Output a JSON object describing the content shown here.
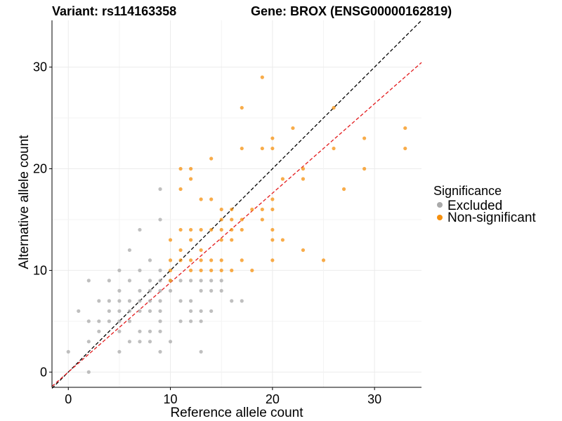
{
  "titles": {
    "variant": "Variant: rs114163358",
    "gene": "Gene: BROX (ENSG00000162819)"
  },
  "legend": {
    "title": "Significance",
    "items": [
      {
        "label": "Excluded",
        "color": "#aaaaaa"
      },
      {
        "label": "Non-significant",
        "color": "#f6900e"
      }
    ]
  },
  "chart_data": {
    "type": "scatter",
    "title": "Variant: rs114163358     Gene: BROX (ENSG00000162819)",
    "xlabel": "Reference allele count",
    "ylabel": "Alternative allele count",
    "xlim": [
      -1.6,
      34.6
    ],
    "ylim": [
      -1.5,
      34.6
    ],
    "xticks": [
      0,
      10,
      20,
      30
    ],
    "yticks": [
      0,
      10,
      20,
      30
    ],
    "grid": true,
    "legend_position": "right",
    "reference_lines": [
      {
        "style": "dashed",
        "color": "#000000",
        "slope": 1.0,
        "intercept": 0
      },
      {
        "style": "dashed",
        "color": "#e31a1c",
        "slope": 0.88,
        "intercept": 0
      }
    ],
    "series": [
      {
        "name": "Excluded",
        "color": "#aaaaaa",
        "points": [
          [
            0,
            2
          ],
          [
            1,
            6
          ],
          [
            2,
            9
          ],
          [
            2,
            5
          ],
          [
            2,
            3
          ],
          [
            2,
            0
          ],
          [
            3,
            7
          ],
          [
            3,
            5
          ],
          [
            3,
            4
          ],
          [
            4,
            9
          ],
          [
            4,
            7
          ],
          [
            4,
            6
          ],
          [
            4,
            5
          ],
          [
            5,
            10
          ],
          [
            5,
            8
          ],
          [
            5,
            7
          ],
          [
            5,
            6
          ],
          [
            5,
            5
          ],
          [
            5,
            4
          ],
          [
            5,
            2
          ],
          [
            6,
            12
          ],
          [
            6,
            9
          ],
          [
            6,
            7
          ],
          [
            6,
            6
          ],
          [
            6,
            5
          ],
          [
            6,
            3
          ],
          [
            7,
            14
          ],
          [
            7,
            10
          ],
          [
            7,
            8
          ],
          [
            7,
            7
          ],
          [
            7,
            6
          ],
          [
            7,
            4
          ],
          [
            7,
            3
          ],
          [
            8,
            11
          ],
          [
            8,
            9
          ],
          [
            8,
            8
          ],
          [
            8,
            7
          ],
          [
            8,
            6
          ],
          [
            8,
            4
          ],
          [
            8,
            3
          ],
          [
            9,
            18
          ],
          [
            9,
            15
          ],
          [
            9,
            10
          ],
          [
            9,
            9
          ],
          [
            9,
            8
          ],
          [
            9,
            7
          ],
          [
            9,
            6
          ],
          [
            9,
            5
          ],
          [
            9,
            4
          ],
          [
            9,
            2
          ],
          [
            10,
            9
          ],
          [
            10,
            8
          ],
          [
            10,
            3
          ],
          [
            11,
            9
          ],
          [
            11,
            7
          ],
          [
            11,
            5
          ],
          [
            12,
            9
          ],
          [
            12,
            7
          ],
          [
            12,
            6
          ],
          [
            12,
            5
          ],
          [
            13,
            9
          ],
          [
            13,
            8
          ],
          [
            13,
            6
          ],
          [
            13,
            5
          ],
          [
            13,
            2
          ],
          [
            14,
            9
          ],
          [
            14,
            8
          ],
          [
            14,
            6
          ],
          [
            15,
            9
          ],
          [
            15,
            8
          ],
          [
            16,
            7
          ],
          [
            17,
            7
          ]
        ]
      },
      {
        "name": "Non-significant",
        "color": "#f6900e",
        "points": [
          [
            10,
            13
          ],
          [
            10,
            11
          ],
          [
            10,
            10
          ],
          [
            10,
            9
          ],
          [
            11,
            20
          ],
          [
            11,
            18
          ],
          [
            11,
            14
          ],
          [
            11,
            12
          ],
          [
            11,
            11
          ],
          [
            12,
            20
          ],
          [
            12,
            19
          ],
          [
            12,
            14
          ],
          [
            12,
            13
          ],
          [
            12,
            11
          ],
          [
            12,
            10
          ],
          [
            13,
            17
          ],
          [
            13,
            14
          ],
          [
            13,
            12
          ],
          [
            13,
            11
          ],
          [
            13,
            10
          ],
          [
            14,
            21
          ],
          [
            14,
            17
          ],
          [
            14,
            14
          ],
          [
            14,
            11
          ],
          [
            14,
            10
          ],
          [
            15,
            16
          ],
          [
            15,
            15
          ],
          [
            15,
            14
          ],
          [
            15,
            13
          ],
          [
            15,
            11
          ],
          [
            15,
            10
          ],
          [
            16,
            16
          ],
          [
            16,
            15
          ],
          [
            16,
            14
          ],
          [
            16,
            13
          ],
          [
            16,
            10
          ],
          [
            17,
            26
          ],
          [
            17,
            22
          ],
          [
            17,
            15
          ],
          [
            17,
            14
          ],
          [
            17,
            11
          ],
          [
            18,
            16
          ],
          [
            18,
            10
          ],
          [
            19,
            29
          ],
          [
            19,
            22
          ],
          [
            19,
            16
          ],
          [
            19,
            15
          ],
          [
            20,
            23
          ],
          [
            20,
            22
          ],
          [
            20,
            17
          ],
          [
            20,
            16
          ],
          [
            20,
            14
          ],
          [
            20,
            13
          ],
          [
            20,
            11
          ],
          [
            21,
            19
          ],
          [
            21,
            13
          ],
          [
            22,
            24
          ],
          [
            23,
            20
          ],
          [
            23,
            19
          ],
          [
            23,
            12
          ],
          [
            25,
            11
          ],
          [
            26,
            26
          ],
          [
            26,
            22
          ],
          [
            27,
            18
          ],
          [
            29,
            23
          ],
          [
            29,
            20
          ],
          [
            33,
            24
          ],
          [
            33,
            22
          ]
        ]
      }
    ]
  }
}
